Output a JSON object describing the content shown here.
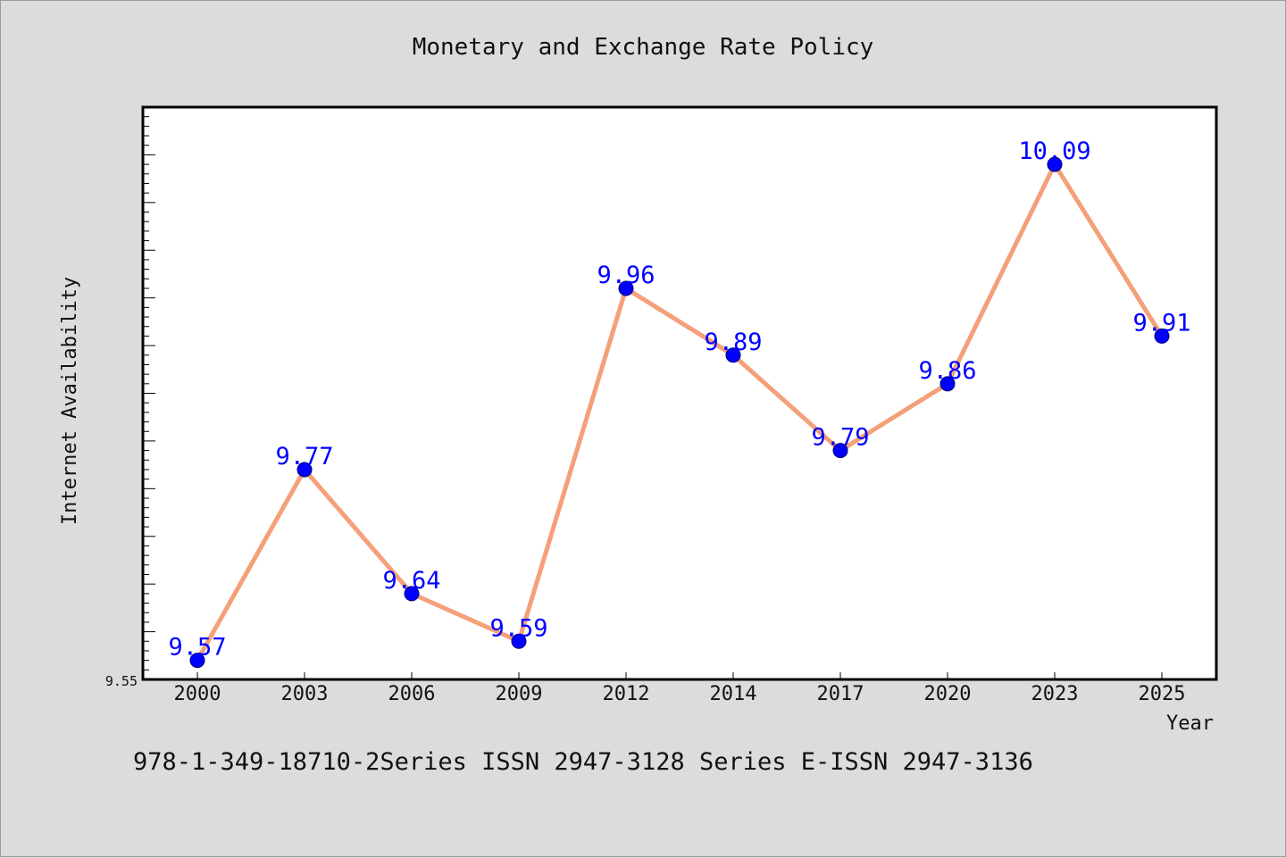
{
  "chart_data": {
    "type": "line",
    "title": "Monetary and Exchange Rate Policy",
    "xlabel": "Year",
    "ylabel": "Internet Availability",
    "categories": [
      "2000",
      "2003",
      "2006",
      "2009",
      "2012",
      "2014",
      "2017",
      "2020",
      "2023",
      "2025"
    ],
    "series": [
      {
        "values": [
          9.57,
          9.77,
          9.64,
          9.59,
          9.96,
          9.89,
          9.79,
          9.86,
          10.09,
          9.91
        ]
      }
    ],
    "data_labels": [
      "9.57",
      "9.77",
      "9.64",
      "9.59",
      "9.96",
      "9.89",
      "9.79",
      "9.86",
      "10.09",
      "9.91"
    ],
    "ylim": [
      9.55,
      10.15
    ],
    "y_tick_labels": [
      "9.55"
    ],
    "grid": false,
    "line_color": "#f4a07a",
    "marker_color": "#0000ff",
    "label_color": "#0000ff"
  },
  "footer": "978-1-349-18710-2Series ISSN 2947-3128 Series E-ISSN 2947-3136"
}
